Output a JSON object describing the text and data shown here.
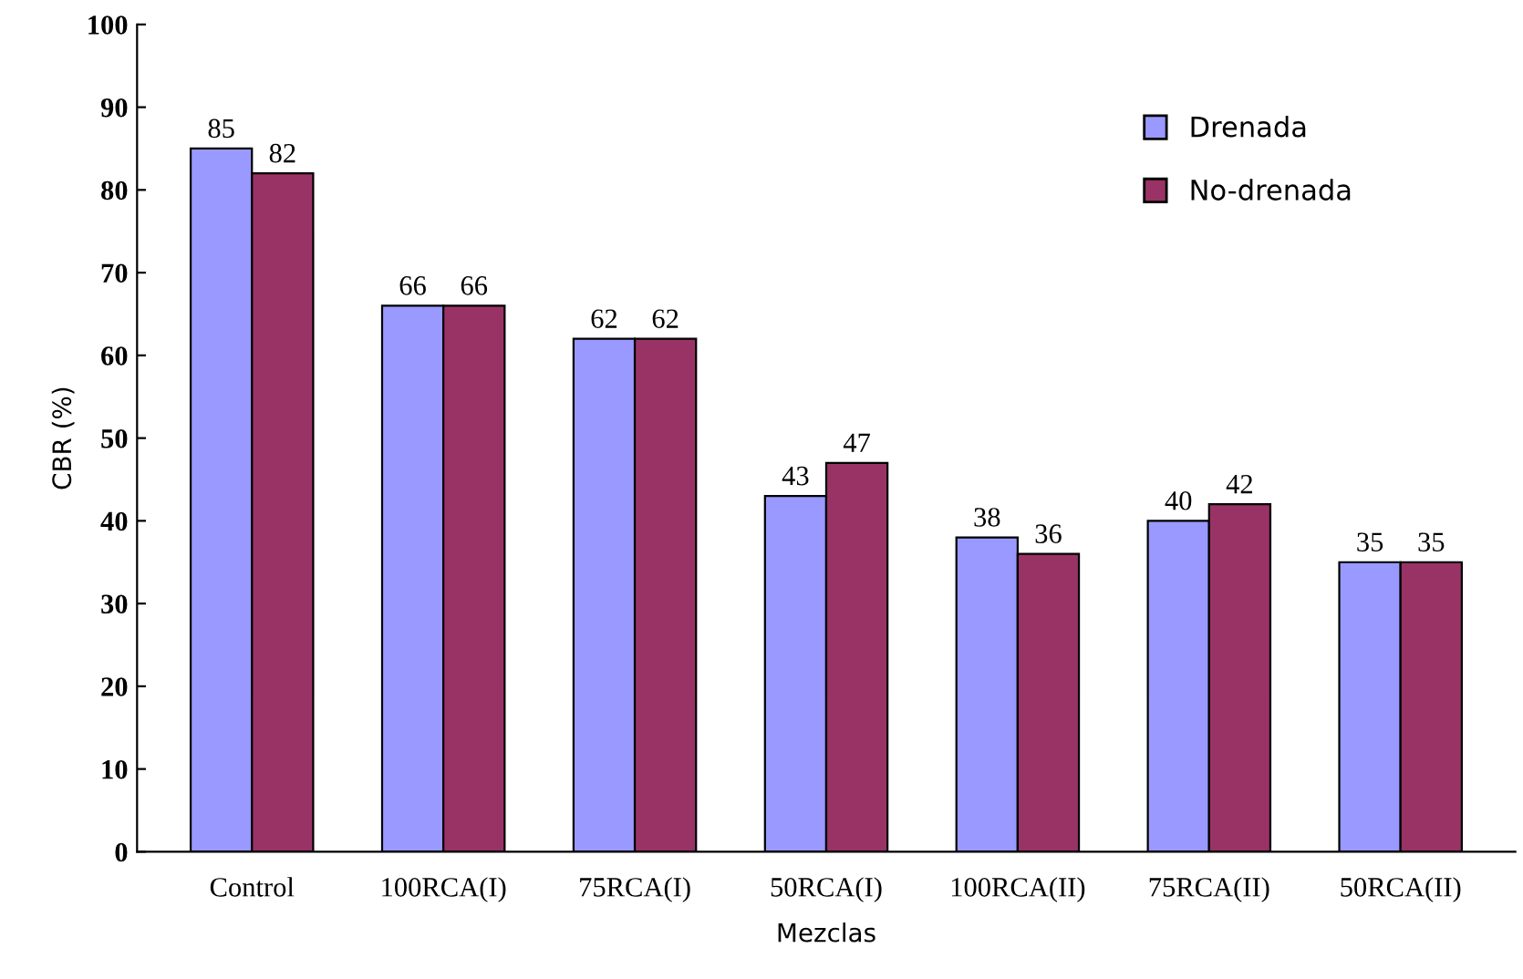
{
  "chart_data": {
    "type": "bar",
    "xlabel": "Mezclas",
    "ylabel": "CBR (%)",
    "categories": [
      "Control",
      "100RCA(I)",
      "75RCA(I)",
      "50RCA(I)",
      "100RCA(II)",
      "75RCA(II)",
      "50RCA(II)"
    ],
    "series": [
      {
        "name": "Drenada",
        "color": "#9999ff",
        "values": [
          85,
          66,
          62,
          43,
          38,
          40,
          35
        ]
      },
      {
        "name": "No-drenada",
        "color": "#993366",
        "values": [
          82,
          66,
          62,
          47,
          36,
          42,
          35
        ]
      }
    ],
    "ylim": [
      0,
      100
    ],
    "yticks": [
      0,
      10,
      20,
      30,
      40,
      50,
      60,
      70,
      80,
      90,
      100
    ],
    "data_labels": true,
    "grid": false,
    "legend": "top right"
  }
}
